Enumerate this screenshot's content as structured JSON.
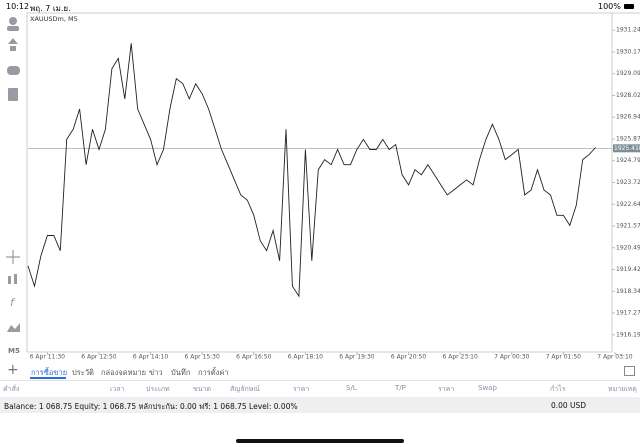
{
  "status_bar": {
    "time": "10:12",
    "date": "พฤ. 7 เม.ย.",
    "battery": "100%"
  },
  "chart_data": {
    "type": "line",
    "title": "XAUUSDm, M5",
    "categories": [
      null,
      null,
      null,
      "6 Apr 11:30",
      null,
      null,
      null,
      null,
      null,
      null,
      null,
      "6 Apr 12:50",
      null,
      null,
      null,
      null,
      null,
      null,
      null,
      "6 Apr 14:10",
      null,
      null,
      null,
      null,
      null,
      null,
      null,
      "6 Apr 15:30",
      null,
      null,
      null,
      null,
      null,
      null,
      null,
      "6 Apr 16:50",
      null,
      null,
      null,
      null,
      null,
      null,
      null,
      "6 Apr 18:10",
      null,
      null,
      null,
      null,
      null,
      null,
      null,
      "6 Apr 19:30",
      null,
      null,
      null,
      null,
      null,
      null,
      null,
      "6 Apr 20:50",
      null,
      null,
      null,
      null,
      null,
      null,
      null,
      "6 Apr 23:10",
      null,
      null,
      null,
      null,
      null,
      null,
      null,
      "7 Apr 00:30",
      null,
      null,
      null,
      null,
      null,
      null,
      null,
      "7 Apr 01:50",
      null,
      null,
      null,
      null,
      null,
      null,
      null,
      "7 Apr 03:10"
    ],
    "series": [
      {
        "name": "XAUUSDm",
        "color": "#222222",
        "values": [
          1919.6,
          1918.6,
          1920.1,
          1921.1,
          1921.1,
          1920.35,
          1925.85,
          1926.35,
          1927.35,
          1924.6,
          1926.35,
          1925.35,
          1926.35,
          1929.35,
          1929.85,
          1927.85,
          1930.6,
          1927.35,
          1926.6,
          1925.85,
          1924.6,
          1925.35,
          1927.35,
          1928.85,
          1928.6,
          1927.85,
          1928.6,
          1928.1,
          1927.35,
          1926.35,
          1925.35,
          1924.6,
          1923.85,
          1923.1,
          1922.85,
          1922.1,
          1920.85,
          1920.35,
          1921.35,
          1919.85,
          1926.35,
          1918.6,
          1918.1,
          1925.35,
          1919.85,
          1924.35,
          1924.85,
          1924.6,
          1925.35,
          1924.6,
          1924.6,
          1925.35,
          1925.85,
          1925.35,
          1925.35,
          1925.85,
          1925.35,
          1925.6,
          1924.1,
          1923.6,
          1924.35,
          1924.1,
          1924.6,
          1924.1,
          1923.6,
          1923.1,
          1923.35,
          1923.6,
          1923.85,
          1923.6,
          1924.85,
          1925.85,
          1926.6,
          1925.85,
          1924.85,
          1925.1,
          1925.35,
          1923.1,
          1923.35,
          1924.35,
          1923.35,
          1923.1,
          1922.1,
          1922.1,
          1921.6,
          1922.6,
          1924.85,
          1925.1,
          1925.45,
          null,
          null,
          null
        ]
      }
    ],
    "ylim": [
      1915.345,
      1932.095
    ],
    "yticks": [
      1931.245,
      {
        "value": 1930.17,
        "label": "1930.170"
      },
      1929.095,
      {
        "value": 1928.02,
        "label": "1928.020"
      },
      1926.945,
      {
        "value": 1925.87,
        "label": "1925.870"
      },
      1924.795,
      {
        "value": 1923.72,
        "label": "1923.720"
      },
      1922.645,
      {
        "value": 1921.57,
        "label": "1921.570"
      },
      1920.495,
      {
        "value": 1919.42,
        "label": "1919.420"
      },
      1918.345,
      {
        "value": 1917.27,
        "label": "1917.270"
      },
      1916.195
    ],
    "current_price": {
      "value": 1925.41,
      "label": "1925.410"
    },
    "grid": false
  },
  "timeframe": "M5",
  "tabs": [
    "การซื้อขาย",
    "ประวัติ",
    "กล่องจดหมาย",
    "ข่าว",
    "บันทึก",
    "การตั้งค่า"
  ],
  "columns": [
    "คำสั่ง",
    "เวลา",
    "ประเภท",
    "ขนาด",
    "สัญลักษณ์",
    "ราคา",
    "S/L",
    "T/P",
    "ราคา",
    "Swap",
    "กำไร",
    "หมายเหตุ"
  ],
  "balance": {
    "text": "Balance: 1 068.75 Equity: 1 068.75 หลักประกัน: 0.00 ฟรี: 1 068.75 Level: 0.00%",
    "profit": "0.00",
    "currency": "USD"
  }
}
